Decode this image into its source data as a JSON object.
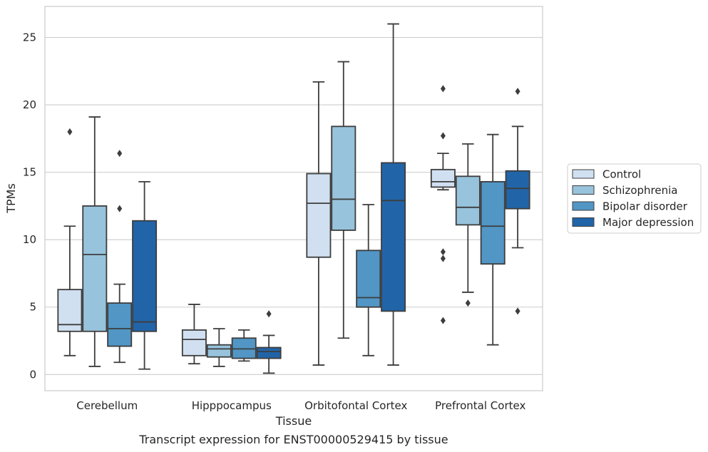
{
  "chart_data": {
    "type": "box",
    "caption": "Transcript expression for ENST00000529415 by tissue",
    "xlabel": "Tissue",
    "ylabel": "TPMs",
    "ylim": [
      -1.2,
      27.3
    ],
    "yticks": [
      0,
      5,
      10,
      15,
      20,
      25
    ],
    "grid": "horizontal",
    "legend_position": "right",
    "categories": [
      "Cerebellum",
      "Hipppocampus",
      "Orbitofontal Cortex",
      "Prefrontal Cortex"
    ],
    "series": [
      {
        "name": "Control",
        "color": "#d0e0f1",
        "boxes": [
          {
            "whisker_low": 1.4,
            "q1": 3.2,
            "median": 3.7,
            "q3": 6.3,
            "whisker_high": 11.0,
            "outliers": [
              18.0
            ]
          },
          {
            "whisker_low": 0.8,
            "q1": 1.4,
            "median": 2.6,
            "q3": 3.3,
            "whisker_high": 5.2,
            "outliers": []
          },
          {
            "whisker_low": 0.7,
            "q1": 8.7,
            "median": 12.7,
            "q3": 14.9,
            "whisker_high": 21.7,
            "outliers": []
          },
          {
            "whisker_low": 13.7,
            "q1": 13.9,
            "median": 14.3,
            "q3": 15.2,
            "whisker_high": 16.4,
            "outliers": [
              21.2,
              17.7,
              9.1,
              8.6,
              4.0
            ]
          }
        ]
      },
      {
        "name": "Schizophrenia",
        "color": "#98c3dc",
        "boxes": [
          {
            "whisker_low": 0.6,
            "q1": 3.2,
            "median": 8.9,
            "q3": 12.5,
            "whisker_high": 19.1,
            "outliers": []
          },
          {
            "whisker_low": 0.6,
            "q1": 1.3,
            "median": 1.9,
            "q3": 2.2,
            "whisker_high": 3.4,
            "outliers": []
          },
          {
            "whisker_low": 2.7,
            "q1": 10.7,
            "median": 13.0,
            "q3": 18.4,
            "whisker_high": 23.2,
            "outliers": []
          },
          {
            "whisker_low": 6.1,
            "q1": 11.1,
            "median": 12.4,
            "q3": 14.7,
            "whisker_high": 17.1,
            "outliers": [
              5.3
            ]
          }
        ]
      },
      {
        "name": "Bipolar disorder",
        "color": "#5196c5",
        "boxes": [
          {
            "whisker_low": 0.9,
            "q1": 2.1,
            "median": 3.4,
            "q3": 5.3,
            "whisker_high": 6.7,
            "outliers": [
              16.4,
              12.3
            ]
          },
          {
            "whisker_low": 1.0,
            "q1": 1.2,
            "median": 1.9,
            "q3": 2.7,
            "whisker_high": 3.3,
            "outliers": []
          },
          {
            "whisker_low": 1.4,
            "q1": 5.0,
            "median": 5.7,
            "q3": 9.2,
            "whisker_high": 12.6,
            "outliers": []
          },
          {
            "whisker_low": 2.2,
            "q1": 8.2,
            "median": 11.0,
            "q3": 14.3,
            "whisker_high": 17.8,
            "outliers": []
          }
        ]
      },
      {
        "name": "Major depression",
        "color": "#2264a8",
        "boxes": [
          {
            "whisker_low": 0.4,
            "q1": 3.2,
            "median": 3.9,
            "q3": 11.4,
            "whisker_high": 14.3,
            "outliers": []
          },
          {
            "whisker_low": 0.1,
            "q1": 1.2,
            "median": 1.7,
            "q3": 2.0,
            "whisker_high": 2.9,
            "outliers": [
              4.5
            ]
          },
          {
            "whisker_low": 0.7,
            "q1": 4.7,
            "median": 12.9,
            "q3": 15.7,
            "whisker_high": 26.0,
            "outliers": []
          },
          {
            "whisker_low": 9.4,
            "q1": 12.3,
            "median": 13.8,
            "q3": 15.1,
            "whisker_high": 18.4,
            "outliers": [
              21.0,
              4.7
            ]
          }
        ]
      }
    ]
  }
}
